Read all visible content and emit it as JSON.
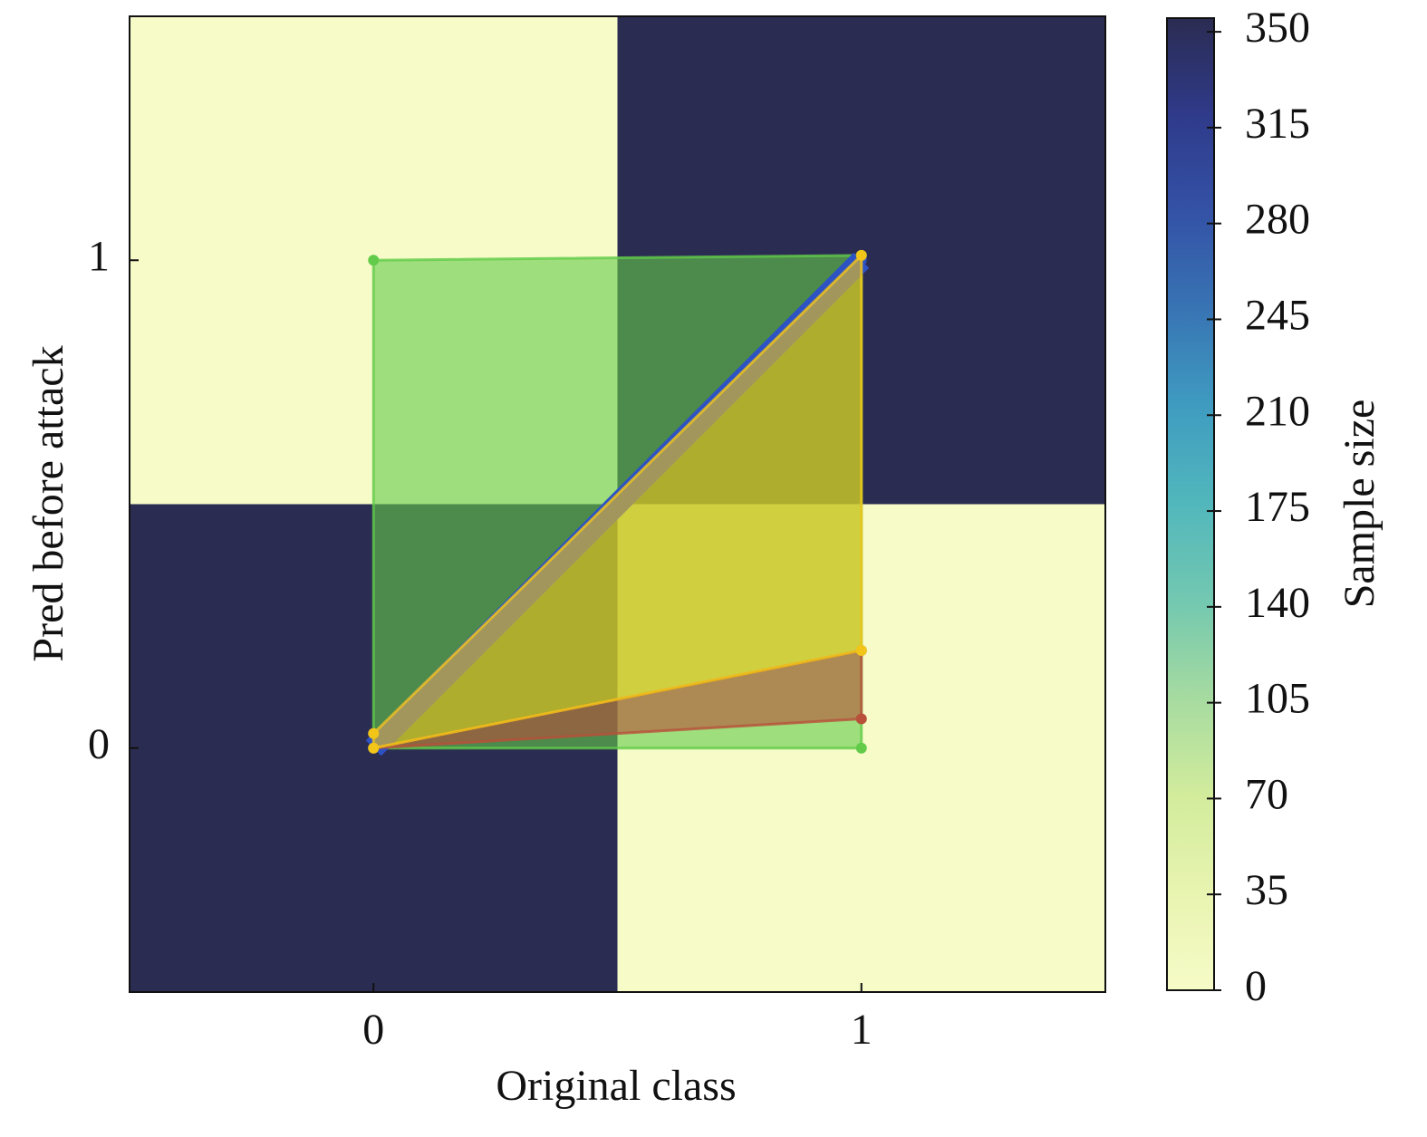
{
  "chart_data": {
    "type": "heatmap",
    "xlabel": "Original class",
    "ylabel": "Pred before attack",
    "x_categories": [
      0,
      1
    ],
    "y_categories": [
      0,
      1
    ],
    "z": [
      [
        355,
        0
      ],
      [
        0,
        355
      ]
    ],
    "xlim": [
      -0.5,
      1.5
    ],
    "ylim": [
      -0.5,
      1.5
    ],
    "xticks": [
      0,
      1
    ],
    "yticks": [
      0,
      1
    ],
    "colormap": [
      "#f7fbc8",
      "#e8f4b0",
      "#d2ec9c",
      "#a6dba0",
      "#73c8b0",
      "#52b7bc",
      "#3f9cc0",
      "#3874b4",
      "#3452a6",
      "#2f3a8a",
      "#2b2c52"
    ],
    "colorbar": {
      "label": "Sample size",
      "lim": [
        0,
        355
      ],
      "ticks": [
        0,
        35,
        70,
        105,
        140,
        175,
        210,
        245,
        280,
        315,
        350
      ]
    },
    "overlays": [
      {
        "type": "polygon",
        "color": "#62cc4a",
        "x": [
          0,
          1,
          1,
          0
        ],
        "values": [
          1,
          1.01,
          0,
          0
        ]
      },
      {
        "type": "polygon",
        "color": "#2d52c4",
        "x": [
          0,
          1
        ],
        "values": [
          0,
          1
        ]
      },
      {
        "type": "polygon",
        "color": "#b8503a",
        "x": [
          0,
          1,
          1
        ],
        "values": [
          0,
          0.06,
          0.2
        ]
      },
      {
        "type": "polygon",
        "color": "#f2c519",
        "x": [
          0,
          1,
          1,
          0
        ],
        "values": [
          0.03,
          1.01,
          0.2,
          0
        ]
      }
    ]
  }
}
